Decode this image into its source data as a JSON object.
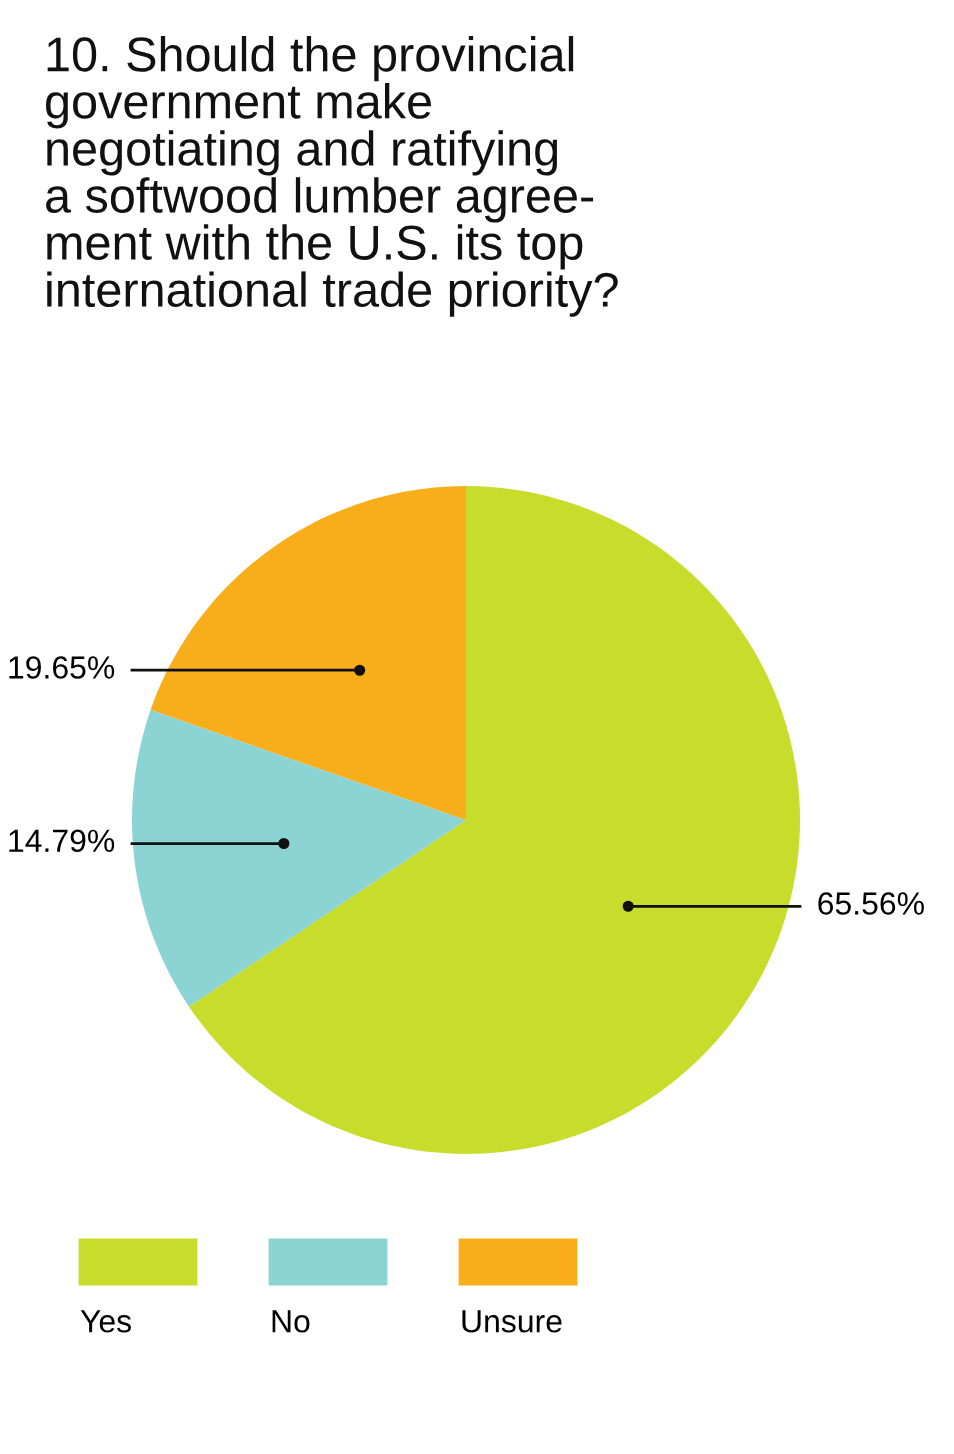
{
  "chart_data": {
    "type": "pie",
    "title": "10. Should the provincial\ngovernment make\nnegotiating and ratifying\na softwood lumber agree-\nment with the U.S. its top\ninternational trade priority?",
    "categories": [
      "Yes",
      "No",
      "Unsure"
    ],
    "values": [
      65.56,
      14.79,
      19.65
    ],
    "colors": [
      "#c8dc2c",
      "#8cd3d4",
      "#f8ad1a"
    ],
    "value_labels": [
      "65.56%",
      "14.79%",
      "19.65%"
    ],
    "legend": "bottom"
  }
}
